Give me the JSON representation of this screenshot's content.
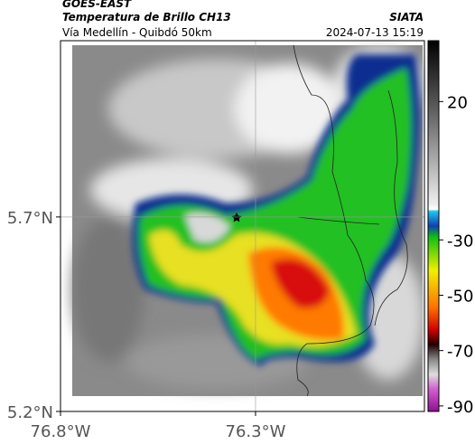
{
  "header": {
    "title": "GOES-EAST",
    "subtitle": "Temperatura de Brillo CH13",
    "route": "Vía Medellín - Quibdó 50km",
    "org": "SIATA",
    "timestamp": "2024-07-13 15:19"
  },
  "map": {
    "xlim": [
      -76.8,
      -75.867
    ],
    "ylim": [
      5.2,
      6.153
    ],
    "xticks": [
      {
        "value": -76.8,
        "label": "76.8°W"
      },
      {
        "value": -76.3,
        "label": "76.3°W"
      }
    ],
    "yticks": [
      {
        "value": 5.2,
        "label": "5.2°N"
      },
      {
        "value": 5.7,
        "label": "5.7°N"
      }
    ],
    "grid": true
  },
  "colorbar": {
    "lim": [
      -92,
      42
    ],
    "ticks": [
      20,
      -30,
      -50,
      -70,
      -90
    ]
  }
}
